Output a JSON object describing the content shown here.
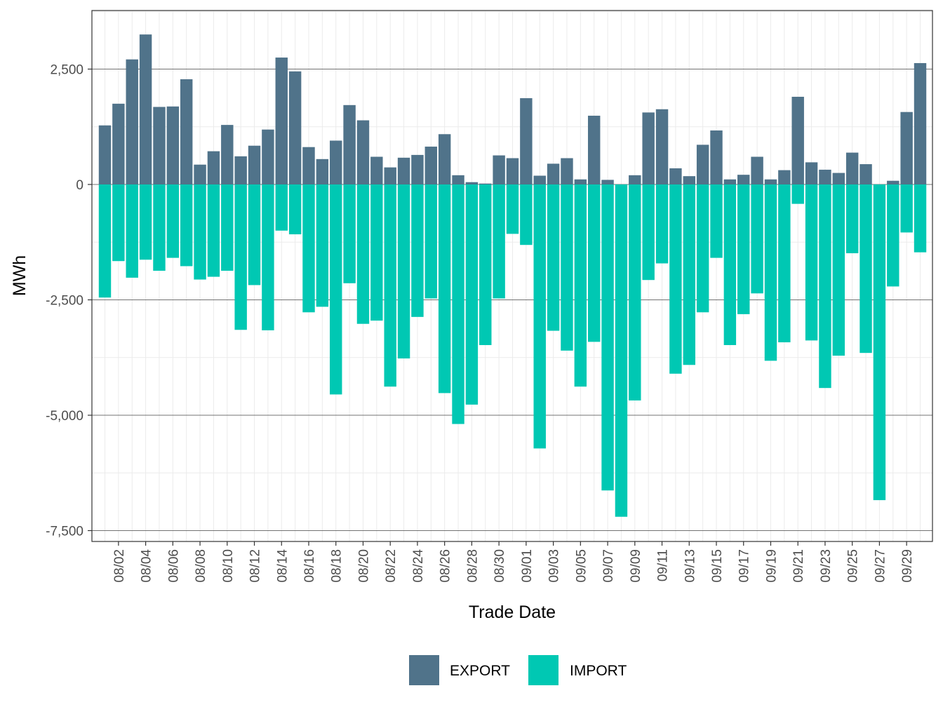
{
  "chart_data": {
    "type": "bar",
    "stacked": "diverging",
    "title": "",
    "xlabel": "Trade Date",
    "ylabel": "MWh",
    "ylim": [
      -7700,
      3750
    ],
    "y_ticks": [
      2500,
      0,
      -2500,
      -5000,
      -7500
    ],
    "y_tick_labels": [
      "2,500",
      "0",
      "-2,500",
      "-5,000",
      "-7,500"
    ],
    "x_tick_labels": [
      "08/02",
      "08/04",
      "08/06",
      "08/08",
      "08/10",
      "08/12",
      "08/14",
      "08/16",
      "08/18",
      "08/20",
      "08/22",
      "08/24",
      "08/26",
      "08/28",
      "08/30",
      "09/01",
      "09/03",
      "09/05",
      "09/07",
      "09/09",
      "09/11",
      "09/13",
      "09/15",
      "09/17",
      "09/19",
      "09/21",
      "09/23",
      "09/25",
      "09/27",
      "09/29"
    ],
    "legend_position": "bottom",
    "categories": [
      "08/01",
      "08/02",
      "08/03",
      "08/04",
      "08/05",
      "08/06",
      "08/07",
      "08/08",
      "08/09",
      "08/10",
      "08/11",
      "08/12",
      "08/13",
      "08/14",
      "08/15",
      "08/16",
      "08/17",
      "08/18",
      "08/19",
      "08/20",
      "08/21",
      "08/22",
      "08/23",
      "08/24",
      "08/25",
      "08/26",
      "08/27",
      "08/28",
      "08/29",
      "08/30",
      "08/31",
      "09/01",
      "09/02",
      "09/03",
      "09/04",
      "09/05",
      "09/06",
      "09/07",
      "09/08",
      "09/09",
      "09/10",
      "09/11",
      "09/12",
      "09/13",
      "09/14",
      "09/15",
      "09/16",
      "09/17",
      "09/18",
      "09/19",
      "09/20",
      "09/21",
      "09/22",
      "09/23",
      "09/24",
      "09/25",
      "09/26",
      "09/27",
      "09/28",
      "09/29",
      "09/30"
    ],
    "series": [
      {
        "name": "EXPORT",
        "color": "#50738a",
        "values": [
          1280,
          1750,
          2710,
          3250,
          1680,
          1690,
          2280,
          430,
          720,
          1290,
          610,
          840,
          1190,
          2750,
          2450,
          810,
          550,
          950,
          1720,
          1390,
          600,
          370,
          580,
          640,
          820,
          1090,
          200,
          50,
          20,
          630,
          570,
          1870,
          190,
          450,
          570,
          110,
          1490,
          100,
          0,
          200,
          1560,
          1630,
          350,
          180,
          860,
          1170,
          110,
          210,
          600,
          110,
          310,
          1900,
          480,
          320,
          250,
          690,
          440,
          0,
          80,
          1570,
          2630
        ]
      },
      {
        "name": "IMPORT",
        "color": "#00c8b3",
        "values": [
          -2450,
          -1660,
          -2020,
          -1630,
          -1870,
          -1590,
          -1770,
          -2060,
          -2000,
          -1870,
          -3150,
          -2180,
          -3160,
          -1000,
          -1080,
          -2770,
          -2650,
          -4550,
          -2140,
          -3020,
          -2950,
          -4380,
          -3770,
          -2870,
          -2470,
          -4520,
          -5190,
          -4770,
          -3480,
          -2470,
          -1070,
          -1310,
          -5720,
          -3170,
          -3600,
          -4380,
          -3410,
          -6630,
          -7200,
          -4680,
          -2070,
          -1710,
          -4100,
          -3910,
          -2770,
          -1590,
          -3480,
          -2810,
          -2360,
          -3820,
          -3420,
          -420,
          -3380,
          -4410,
          -3710,
          -1490,
          -3650,
          -6840,
          -2210,
          -1040,
          -1470
        ]
      }
    ]
  }
}
